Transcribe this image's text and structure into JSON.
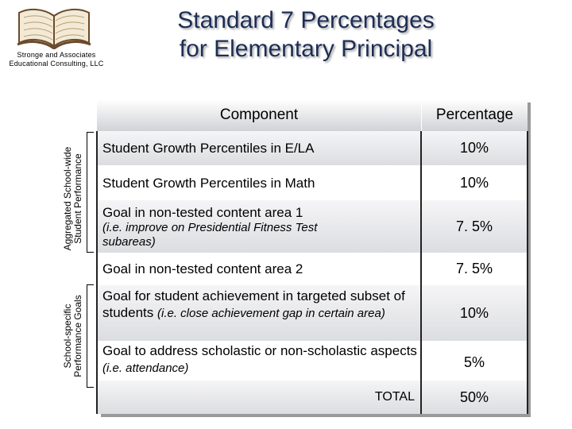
{
  "logo": {
    "text": "Stronge and Associates Educational Consulting, LLC",
    "icon": "open-book-icon"
  },
  "title_line1": "Standard 7 Percentages",
  "title_line2": "for Elementary Principal",
  "side_labels": {
    "group1": [
      "Aggregated School-wide",
      "Student Performance"
    ],
    "group2": [
      "School-specific",
      "Performance Goals"
    ]
  },
  "table": {
    "headers": {
      "component": "Component",
      "percentage": "Percentage"
    },
    "rows": [
      {
        "main": "Student Growth Percentiles in E/LA",
        "note": "",
        "pct": "10%"
      },
      {
        "main": "Student Growth Percentiles in Math",
        "note": "",
        "pct": "10%"
      },
      {
        "main": "Goal in non-tested content area 1",
        "note": "(i.e. improve on Presidential Fitness Test subareas)",
        "pct": "7. 5%"
      },
      {
        "main": "Goal in non-tested content area 2",
        "note": "",
        "pct": "7. 5%"
      },
      {
        "main": "Goal for student achievement in targeted subset of students",
        "note": "(i.e. close achievement gap in certain area)",
        "pct": "10%"
      },
      {
        "main": "Goal to address scholastic or non-scholastic aspects",
        "note": "(i.e. attendance)",
        "pct": "5%"
      }
    ],
    "total_label": "TOTAL",
    "total_value": "50%"
  },
  "colors": {
    "title": "#1d2d55",
    "header_bottom": "#d0d2d6"
  }
}
